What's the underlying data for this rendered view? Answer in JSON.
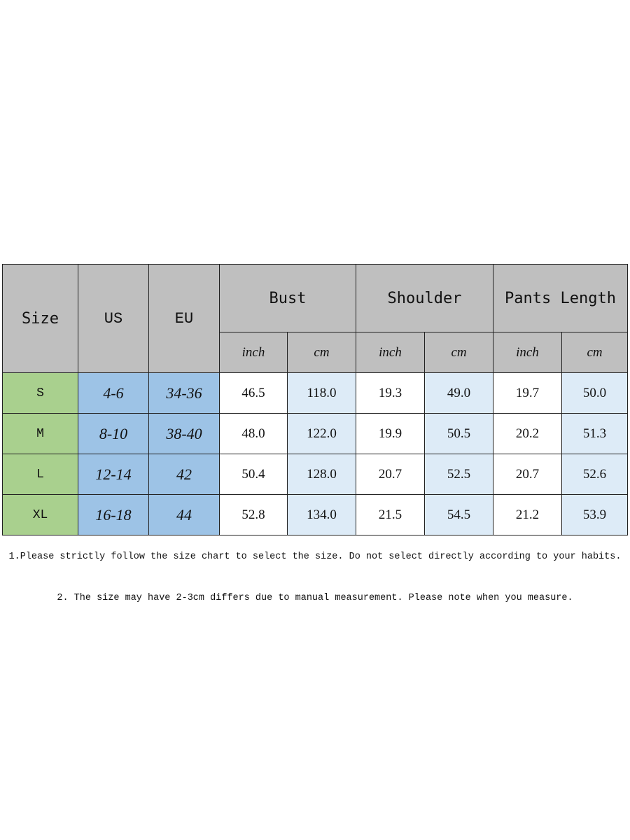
{
  "table": {
    "headers": {
      "size": "Size",
      "us": "US",
      "eu": "EU",
      "groups": [
        "Bust",
        "Shoulder",
        "Pants Length"
      ],
      "units": [
        "inch",
        "cm",
        "inch",
        "cm",
        "inch",
        "cm"
      ]
    },
    "rows": [
      {
        "size": "S",
        "us": "4-6",
        "eu": "34-36",
        "values": [
          "46.5",
          "118.0",
          "19.3",
          "49.0",
          "19.7",
          "50.0"
        ]
      },
      {
        "size": "M",
        "us": "8-10",
        "eu": "38-40",
        "values": [
          "48.0",
          "122.0",
          "19.9",
          "50.5",
          "20.2",
          "51.3"
        ]
      },
      {
        "size": "L",
        "us": "12-14",
        "eu": "42",
        "values": [
          "50.4",
          "128.0",
          "20.7",
          "52.5",
          "20.7",
          "52.6"
        ]
      },
      {
        "size": "XL",
        "us": "16-18",
        "eu": "44",
        "values": [
          "52.8",
          "134.0",
          "21.5",
          "54.5",
          "21.2",
          "53.9"
        ]
      }
    ]
  },
  "notes": [
    "1.Please strictly follow the size chart to select the size. Do not select directly according to your habits.",
    "2. The size may have 2-3cm differs due to manual measurement. Please note when you measure."
  ],
  "colors": {
    "header": "#bfbfbf",
    "size": "#a9d08e",
    "region": "#9dc3e6",
    "cm": "#ddebf7"
  }
}
